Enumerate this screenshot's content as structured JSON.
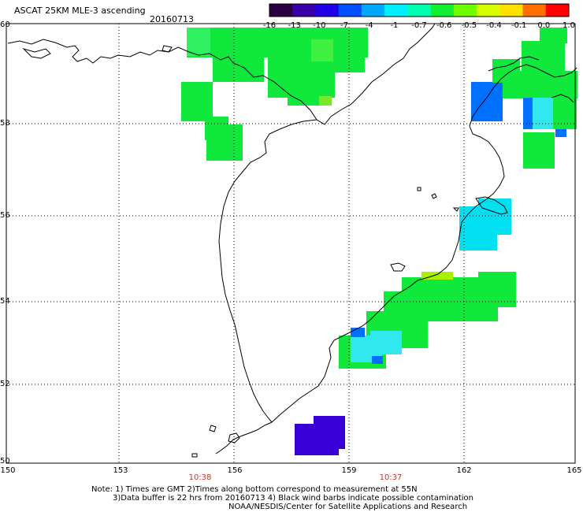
{
  "header": {
    "title": "ASCAT 25KM MLE-3 ascending",
    "date": "20160713"
  },
  "colorbar": {
    "labels": [
      "-16",
      "-13",
      "-10",
      "-7",
      "-4",
      "-1",
      "-0.7",
      "-0.6",
      "-0.5",
      "-0.4",
      "-0.1",
      "0.0",
      "1.0"
    ],
    "colors": [
      "#2a0040",
      "#3a00a8",
      "#2000e8",
      "#0050ff",
      "#00a8ff",
      "#00f0ff",
      "#00ffb0",
      "#10f030",
      "#70ff00",
      "#d8ff00",
      "#ffe000",
      "#ff7000",
      "#ff0000"
    ]
  },
  "axes": {
    "latitude_labels": [
      "60",
      "58",
      "56",
      "54",
      "52",
      "50"
    ],
    "longitude_labels": [
      "150",
      "153",
      "156",
      "159",
      "162",
      "165"
    ],
    "time_labels": [
      "10:38",
      "10:37"
    ]
  },
  "notes": {
    "line1": "Note: 1) Times are GMT 2)Times along bottom correspond to measurement at 55N",
    "line2": "3)Data buffer is 22 hrs from 20160713 4) Black wind barbs indicate possible contamination",
    "line3": "NOAA/NESDIS/Center for Satellite Applications and Research"
  },
  "colors": {
    "green": "#10e83c",
    "green_light": "#2ef060",
    "cyan": "#00f0ff",
    "cyan_light": "#30e8ee",
    "blue": "#0070ff",
    "indigo": "#3a00d8",
    "yellowgreen": "#a8f000"
  }
}
